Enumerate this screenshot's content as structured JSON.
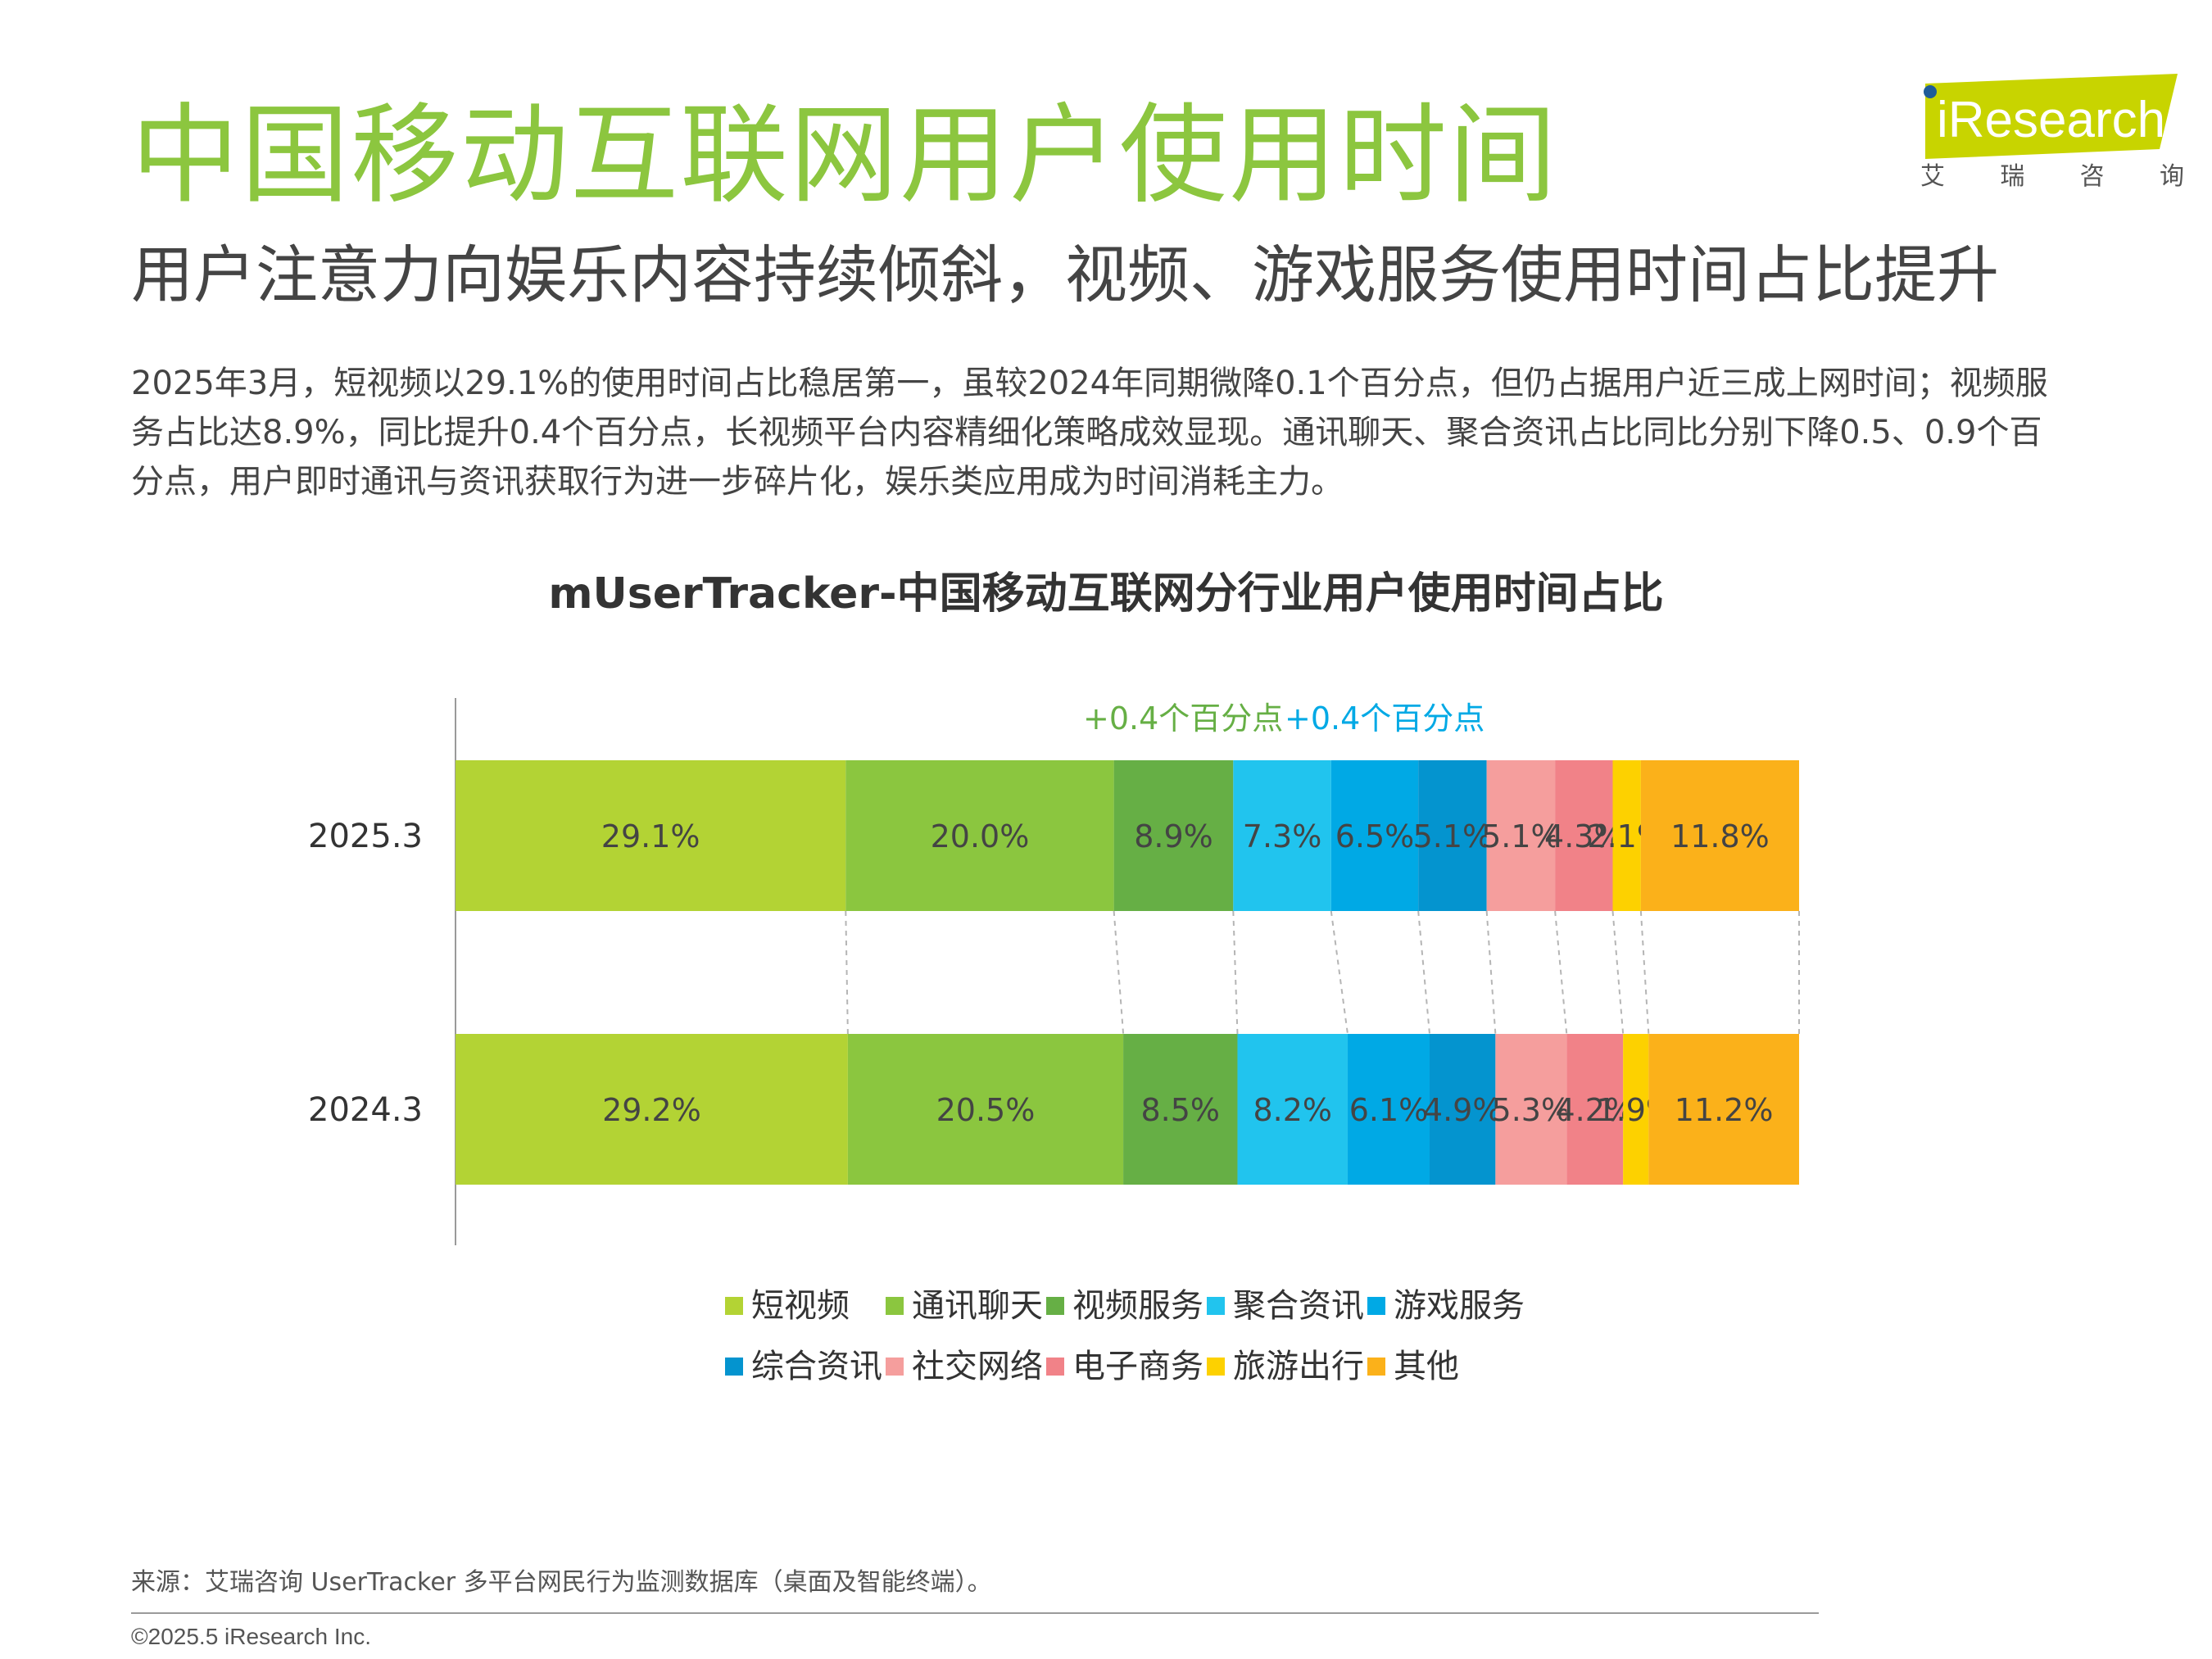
{
  "header": {
    "title": "中国移动互联网用户使用时间",
    "subtitle": "用户注意力向娱乐内容持续倾斜，视频、游戏服务使用时间占比提升",
    "summary_lines": [
      "2025年3月，短视频以29.1%的使用时间占比稳居第一，虽较2024年同期微降0.1个百分点，但仍占据用户近三成上网时间；视频服",
      "务占比达8.9%，同比提升0.4个百分点，长视频平台内容精细化策略成效显现。通讯聊天、聚合资讯占比同比分别下降0.5、0.9个百",
      "分点，用户即时通讯与资讯获取行为进一步碎片化，娱乐类应用成为时间消耗主力。"
    ]
  },
  "logo": {
    "brand": "iResearch",
    "sub": [
      "艾",
      "瑞",
      "咨",
      "询"
    ],
    "brand_color": "#C8D400"
  },
  "chart_data": {
    "type": "bar",
    "orientation": "horizontal",
    "stacked": true,
    "percent_stacked": true,
    "title": "mUserTracker-中国移动互联网分行业用户使用时间占比",
    "categories": [
      "2025.3",
      "2024.3"
    ],
    "series": [
      {
        "name": "短视频",
        "color": "#B3D334",
        "values": [
          29.1,
          29.2
        ],
        "labels": [
          "29.1%",
          "29.2%"
        ]
      },
      {
        "name": "通讯聊天",
        "color": "#8BC63F",
        "values": [
          20.0,
          20.5
        ],
        "labels": [
          "20.0%",
          "20.5%"
        ]
      },
      {
        "name": "视频服务",
        "color": "#66AF45",
        "values": [
          8.9,
          8.5
        ],
        "labels": [
          "8.9%",
          "8.5%"
        ]
      },
      {
        "name": "聚合资讯",
        "color": "#21C4EE",
        "values": [
          7.3,
          8.2
        ],
        "labels": [
          "7.3%",
          "8.2%"
        ]
      },
      {
        "name": "游戏服务",
        "color": "#00A9E5",
        "values": [
          6.5,
          6.1
        ],
        "labels": [
          "6.5%",
          "6.1%"
        ]
      },
      {
        "name": "综合资讯",
        "color": "#0494CF",
        "values": [
          5.1,
          4.9
        ],
        "labels": [
          "5.1%",
          "4.9%"
        ]
      },
      {
        "name": "社交网络",
        "color": "#F59E9D",
        "values": [
          5.1,
          5.3
        ],
        "labels": [
          "5.1%",
          "5.3%"
        ]
      },
      {
        "name": "电子商务",
        "color": "#F18288",
        "values": [
          4.3,
          4.2
        ],
        "labels": [
          "4.3%",
          "4.2%"
        ]
      },
      {
        "name": "旅游出行",
        "color": "#FDD100",
        "values": [
          2.1,
          1.9
        ],
        "labels": [
          "2.1%",
          "1.9%"
        ]
      },
      {
        "name": "其他",
        "color": "#FBB11A",
        "values": [
          11.8,
          11.2
        ],
        "labels": [
          "11.8%",
          "11.2%"
        ]
      }
    ],
    "annotations": [
      {
        "text": "+0.4个百分点",
        "series": "视频服务",
        "color": "#66AF45"
      },
      {
        "text": "+0.4个百分点",
        "series": "游戏服务",
        "color": "#00A9E5"
      }
    ],
    "connectors": "dashed",
    "legend_position": "bottom",
    "grid": false
  },
  "footer": {
    "source": "来源：艾瑞咨询 UserTracker 多平台网民行为监测数据库（桌面及智能终端）。",
    "copyright": "©2025.5 iResearch Inc."
  }
}
